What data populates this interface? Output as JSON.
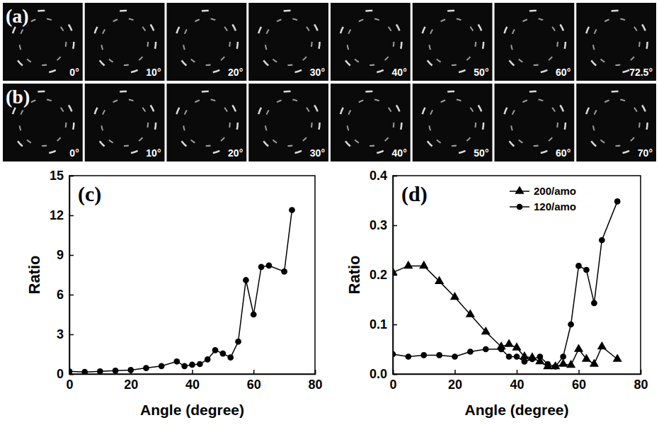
{
  "image_panels": [
    {
      "label": "(a)",
      "frames": [
        "0°",
        "10°",
        "20°",
        "30°",
        "40°",
        "50°",
        "60°",
        "72.5°"
      ]
    },
    {
      "label": "(b)",
      "frames": [
        "0°",
        "10°",
        "20°",
        "30°",
        "40°",
        "50°",
        "60°",
        "70°"
      ]
    }
  ],
  "chart_data": [
    {
      "type": "line",
      "title": "(c)",
      "x_label": "Angle (degree)",
      "y_label": "Ratio",
      "x": [
        0,
        5,
        10,
        15,
        20,
        25,
        30,
        35,
        37.5,
        40,
        42.5,
        45,
        47.5,
        50,
        52.5,
        55,
        57.5,
        60,
        62.5,
        65,
        70,
        72.5
      ],
      "values": [
        0.2,
        0.15,
        0.2,
        0.25,
        0.3,
        0.45,
        0.6,
        0.95,
        0.6,
        0.7,
        0.75,
        1.1,
        1.8,
        1.55,
        1.25,
        2.45,
        7.1,
        4.5,
        8.1,
        8.2,
        7.75,
        12.4
      ],
      "color": "#000000",
      "marker": "circle",
      "xlim": [
        0,
        80
      ],
      "xticks": [
        0,
        20,
        40,
        60,
        80
      ],
      "ylim": [
        0,
        15
      ],
      "yticks": [
        0,
        3,
        6,
        9,
        12,
        15
      ]
    },
    {
      "type": "line",
      "title": "(d)",
      "x_label": "Angle (degree)",
      "y_label": "Ratio",
      "x": [
        0,
        5,
        10,
        15,
        20,
        25,
        30,
        35,
        37.5,
        40,
        42.5,
        45,
        47.5,
        50,
        52.5,
        55,
        57.5,
        60,
        62.5,
        65,
        67.5,
        72.5
      ],
      "series": [
        {
          "name": "200/amo",
          "color": "#000000",
          "marker": "triangle",
          "values": [
            0.205,
            0.218,
            0.218,
            0.187,
            0.155,
            0.12,
            0.085,
            0.055,
            0.06,
            0.053,
            0.035,
            0.033,
            0.025,
            0.015,
            0.015,
            0.02,
            0.018,
            0.05,
            0.03,
            0.02,
            0.055,
            0.03
          ]
        },
        {
          "name": "120/amo",
          "color": "#000000",
          "marker": "circle",
          "values": [
            0.04,
            0.035,
            0.038,
            0.038,
            0.035,
            0.045,
            0.05,
            0.05,
            0.035,
            0.035,
            0.025,
            0.03,
            0.035,
            0.02,
            0.015,
            0.035,
            0.1,
            0.218,
            0.21,
            0.143,
            0.27,
            0.348
          ]
        }
      ],
      "legend": "upper center",
      "xlim": [
        0,
        80
      ],
      "xticks": [
        0,
        20,
        40,
        60,
        80
      ],
      "ylim": [
        0,
        0.4
      ],
      "yticks": [
        {
          "value": 0,
          "label": "0.0"
        },
        0.1,
        0.2,
        0.3,
        0.4
      ]
    }
  ]
}
